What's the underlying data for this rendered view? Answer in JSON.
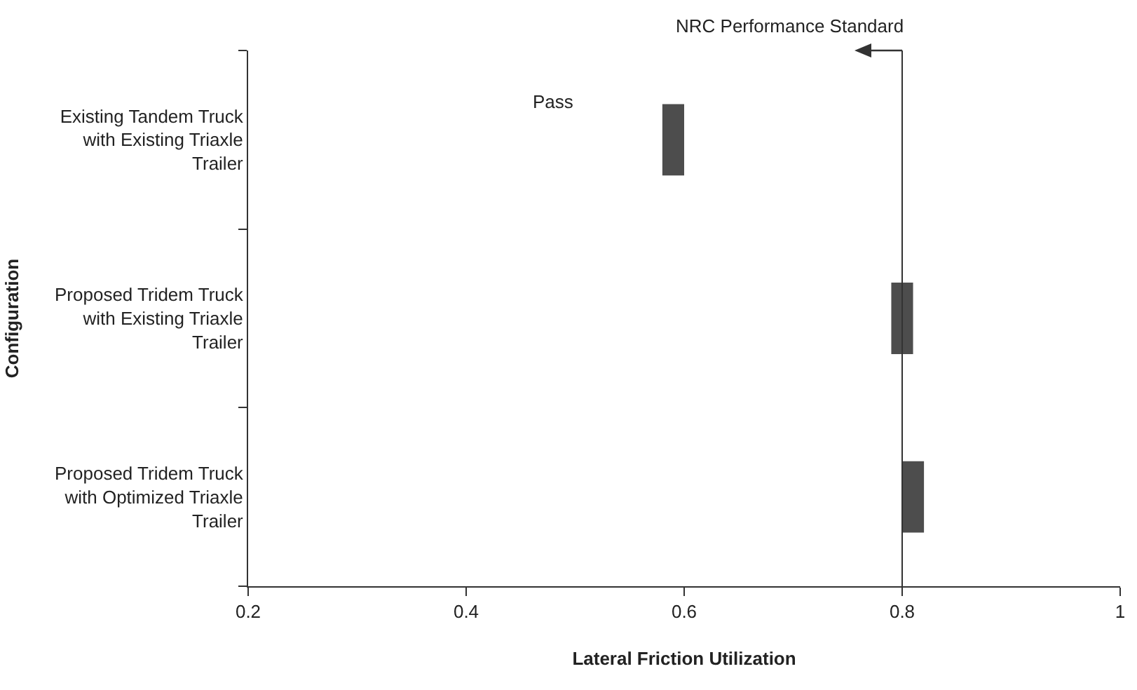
{
  "chart_data": {
    "type": "bar",
    "orientation": "horizontal",
    "xlabel": "Lateral Friction Utilization",
    "ylabel": "Configuration",
    "categories": [
      "Existing Tandem Truck with Existing Triaxle Trailer",
      "Proposed Tridem Truck with Existing Triaxle Trailer",
      "Proposed Tridem Truck with Optimized Triaxle Trailer"
    ],
    "values": [
      0.02,
      0.02,
      0.02
    ],
    "base": [
      0.58,
      0.79,
      0.8
    ],
    "color": "#4d4d4d",
    "xlim": [
      0.2,
      1
    ],
    "xticks": [
      0.2,
      0.4,
      0.6,
      0.8,
      1
    ],
    "ref_lines": [
      {
        "axis": "x",
        "value": 0.8,
        "label": "NRC Performance Standard",
        "color": "#333333",
        "line_style": "solid"
      }
    ],
    "annotations": [
      "Pass"
    ]
  }
}
